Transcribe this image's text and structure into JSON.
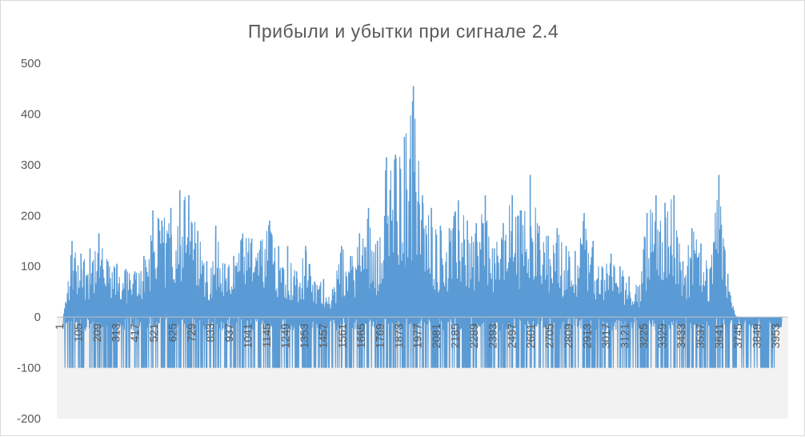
{
  "chart_data": {
    "type": "line",
    "title": "Прибыли  и убытки  при сигнале  2.4",
    "xlabel": "",
    "ylabel": "",
    "ylim": [
      -200,
      500
    ],
    "yticks": [
      500,
      400,
      300,
      200,
      100,
      0,
      -100,
      -200
    ],
    "x_tick_labels": [
      "1",
      "105",
      "209",
      "313",
      "417",
      "521",
      "625",
      "729",
      "833",
      "937",
      "1041",
      "1145",
      "1249",
      "1353",
      "1457",
      "1561",
      "1665",
      "1769",
      "1873",
      "1977",
      "2081",
      "2185",
      "2289",
      "2393",
      "2497",
      "2601",
      "2705",
      "2809",
      "2913",
      "3017",
      "3121",
      "3225",
      "3329",
      "3433",
      "3537",
      "3641",
      "3745",
      "3849",
      "3953"
    ],
    "x_range": [
      1,
      4000
    ],
    "grid": false,
    "legend": "none",
    "series": [
      {
        "color": "#5b9bd5",
        "x": [
          1,
          50,
          100,
          150,
          200,
          250,
          300,
          350,
          400,
          450,
          500,
          550,
          600,
          650,
          700,
          750,
          800,
          850,
          900,
          950,
          1000,
          1050,
          1100,
          1150,
          1200,
          1250,
          1300,
          1350,
          1400,
          1450,
          1500,
          1550,
          1600,
          1650,
          1700,
          1750,
          1800,
          1850,
          1900,
          1950,
          2000,
          2050,
          2100,
          2150,
          2200,
          2250,
          2300,
          2350,
          2400,
          2450,
          2500,
          2550,
          2600,
          2650,
          2700,
          2750,
          2800,
          2850,
          2900,
          2950,
          3000,
          3050,
          3100,
          3150,
          3200,
          3250,
          3300,
          3350,
          3400,
          3450,
          3500,
          3550,
          3600,
          3650,
          3700,
          3750,
          3800,
          3850,
          3900,
          3950,
          4000
        ],
        "y": [
          0,
          150,
          125,
          135,
          165,
          110,
          105,
          95,
          90,
          120,
          210,
          190,
          215,
          250,
          240,
          170,
          110,
          180,
          105,
          120,
          165,
          155,
          150,
          190,
          140,
          140,
          90,
          140,
          70,
          75,
          55,
          140,
          120,
          165,
          215,
          150,
          315,
          320,
          355,
          455,
          240,
          215,
          180,
          175,
          230,
          190,
          185,
          240,
          135,
          185,
          240,
          210,
          280,
          180,
          160,
          175,
          140,
          130,
          205,
          150,
          100,
          125,
          100,
          80,
          60,
          205,
          240,
          225,
          240,
          110,
          175,
          145,
          95,
          280,
          85,
          0,
          0,
          0,
          0,
          0,
          0
        ],
        "lower_envelope": -100
      }
    ]
  }
}
